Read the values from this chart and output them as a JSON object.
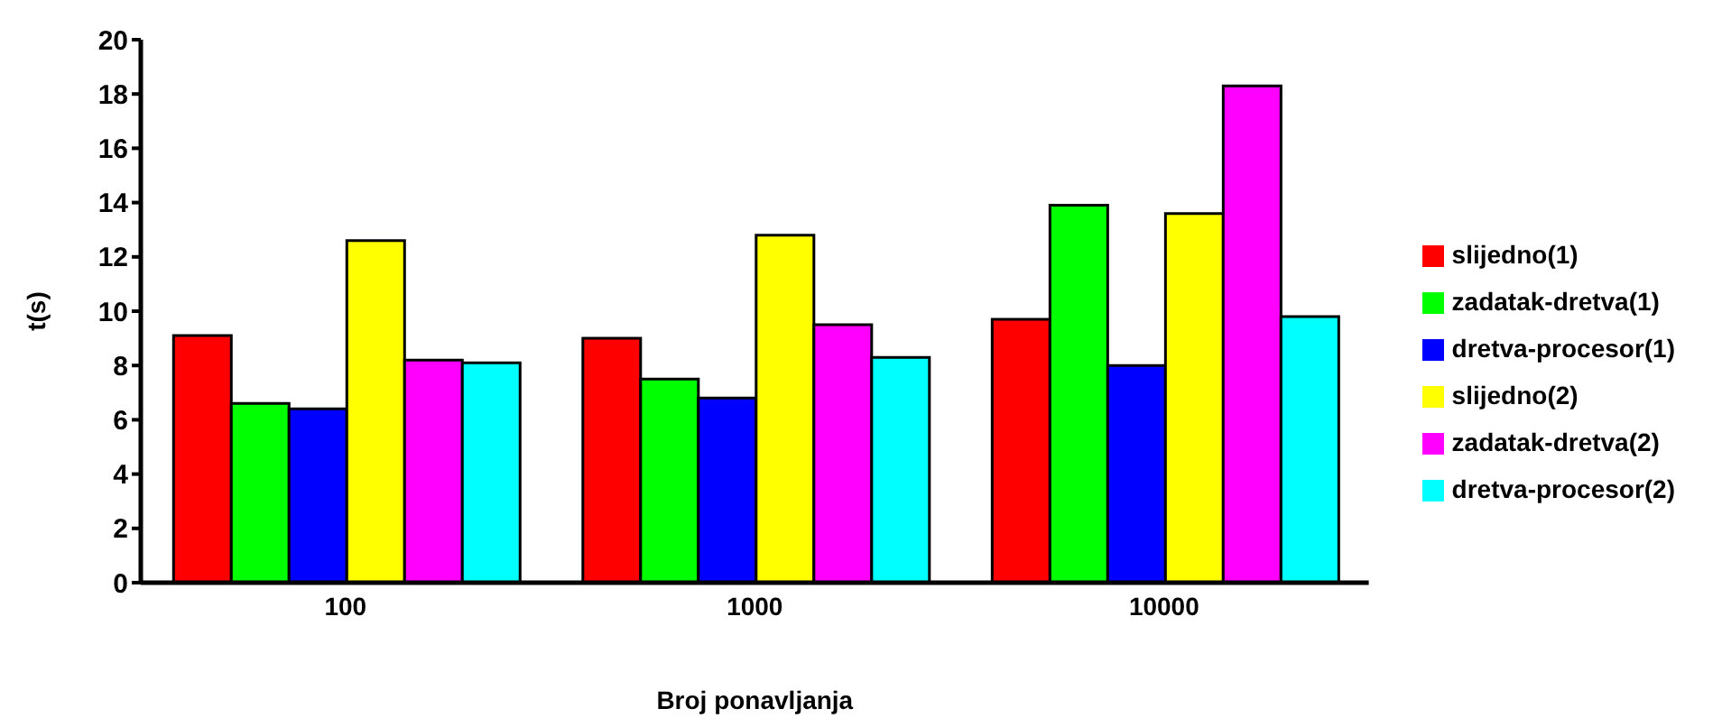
{
  "chart_data": {
    "type": "bar",
    "xlabel": "Broj ponavljanja",
    "ylabel": "t(s)",
    "categories": [
      "100",
      "1000",
      "10000"
    ],
    "series": [
      {
        "name": "slijedno(1)",
        "color": "#ff0000",
        "values": [
          9.1,
          9.0,
          9.7
        ]
      },
      {
        "name": "zadatak-dretva(1)",
        "color": "#00ff00",
        "values": [
          6.6,
          7.5,
          13.9
        ]
      },
      {
        "name": "dretva-procesor(1)",
        "color": "#0000ff",
        "values": [
          6.4,
          6.8,
          8.0
        ]
      },
      {
        "name": "slijedno(2)",
        "color": "#ffff00",
        "values": [
          12.6,
          12.8,
          13.6
        ]
      },
      {
        "name": "zadatak-dretva(2)",
        "color": "#ff00ff",
        "values": [
          8.2,
          9.5,
          18.3
        ]
      },
      {
        "name": "dretva-procesor(2)",
        "color": "#00ffff",
        "values": [
          8.1,
          8.3,
          9.8
        ]
      }
    ],
    "ylim": [
      0,
      20
    ],
    "yticks": [
      0,
      2,
      4,
      6,
      8,
      10,
      12,
      14,
      16,
      18,
      20
    ],
    "grid": false,
    "legend": "right"
  }
}
